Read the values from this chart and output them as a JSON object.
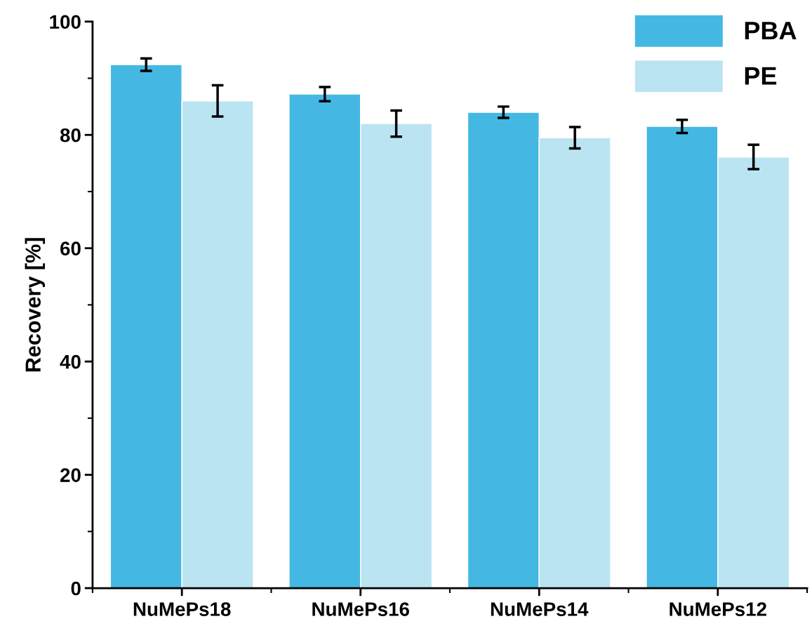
{
  "chart_data": {
    "type": "bar",
    "ylabel": "Recovery [%]",
    "categories": [
      "NuMePs18",
      "NuMePs16",
      "NuMePs14",
      "NuMePs12"
    ],
    "series": [
      {
        "name": "PBA",
        "color": "#44b8e3",
        "values": [
          92.4,
          87.2,
          84.0,
          81.5
        ],
        "errors": [
          1.1,
          1.25,
          1.0,
          1.15
        ]
      },
      {
        "name": "PE",
        "color": "#bbe4f2",
        "values": [
          86.0,
          82.0,
          79.5,
          76.1
        ],
        "errors": [
          2.75,
          2.3,
          1.9,
          2.15
        ]
      }
    ],
    "ylim": [
      0,
      100
    ],
    "yticks": [
      0,
      20,
      40,
      60,
      80,
      100
    ],
    "grid": false,
    "legend": "top right"
  }
}
